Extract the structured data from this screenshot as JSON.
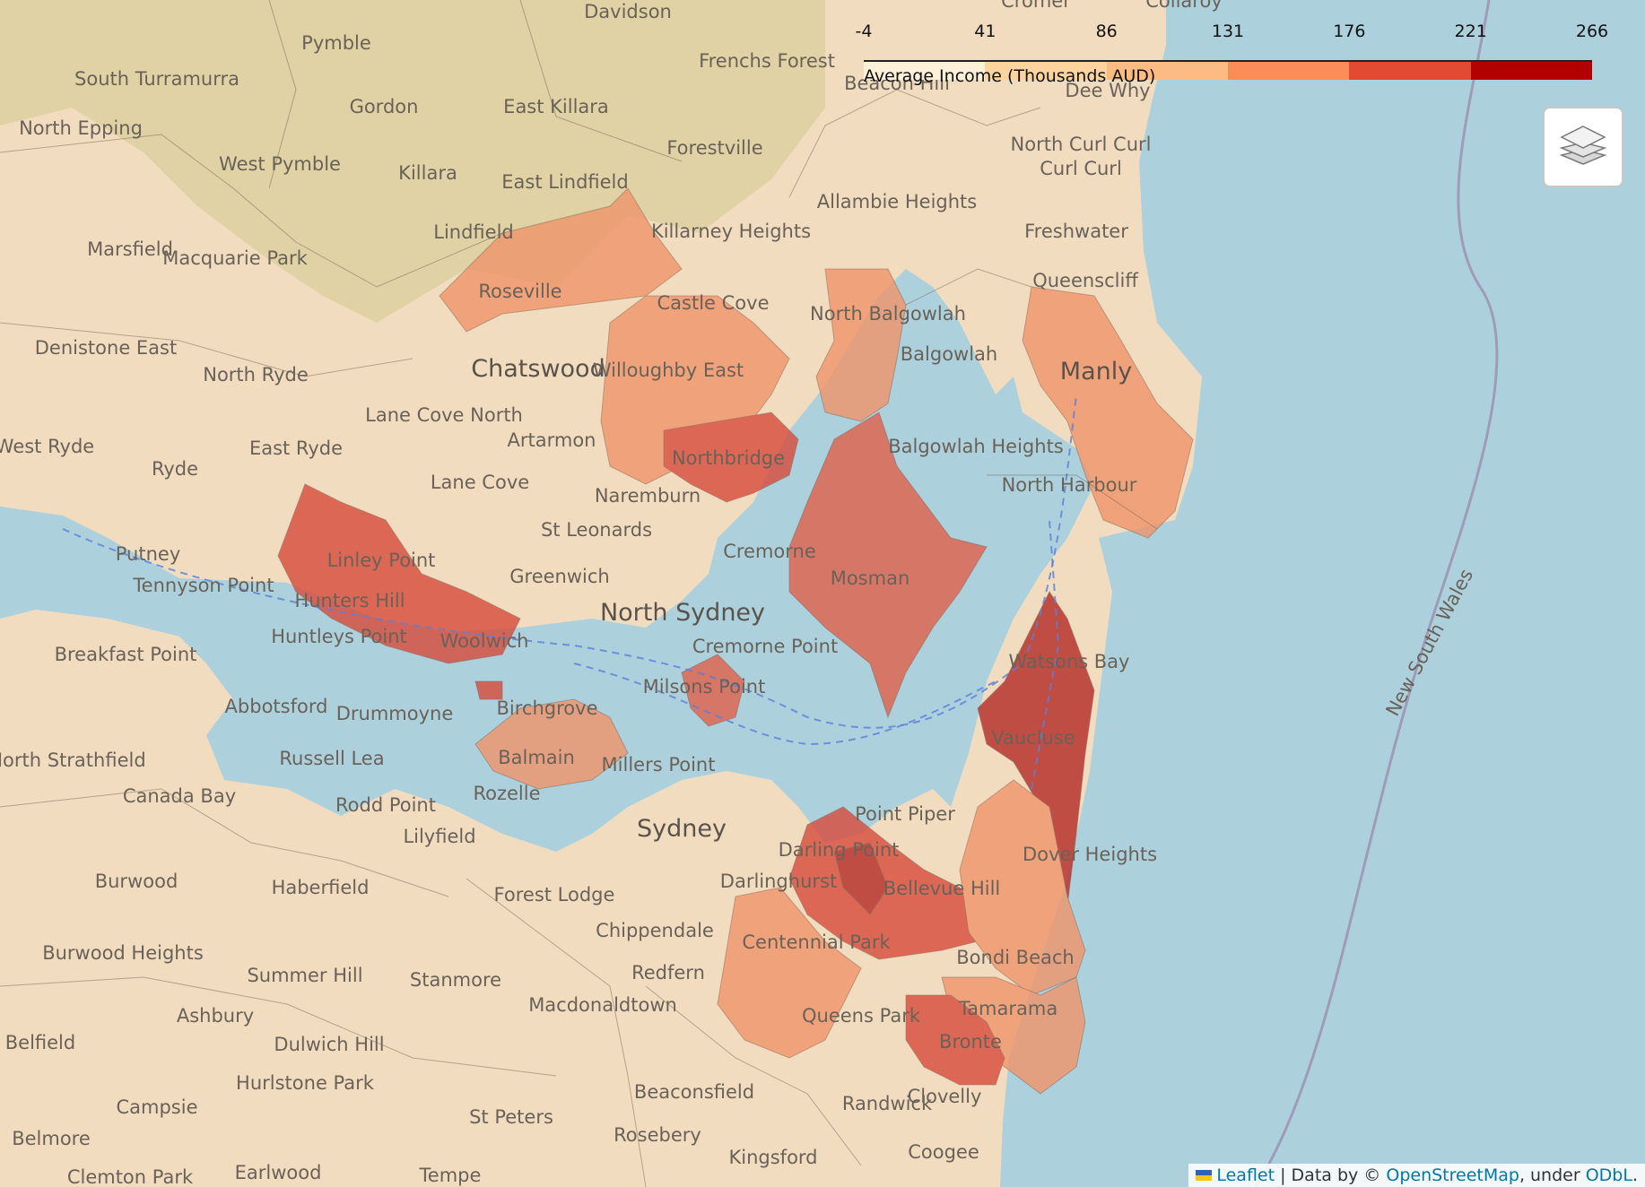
{
  "map": {
    "colors": {
      "water": "#acd1dd",
      "land": "#f1dcc0",
      "bushland": "#d8cf98",
      "border": "#7a5a4a"
    },
    "place_labels": [
      "Davidson",
      "Cromer",
      "Collaroy",
      "Pymble",
      "South Turramurra",
      "Gordon",
      "East Killara",
      "Frenchs Forest",
      "Beacon Hill",
      "Dee Why",
      "North Epping",
      "West Pymble",
      "Killara",
      "Forestville",
      "North Curl Curl",
      "Curl Curl",
      "East Lindfield",
      "Allambie Heights",
      "Freshwater",
      "Marsfield",
      "Macquarie Park",
      "Lindfield",
      "Killarney Heights",
      "Queenscliff",
      "Roseville",
      "Castle Cove",
      "North Balgowlah",
      "Denistone East",
      "North Ryde",
      "Chatswood",
      "Willoughby East",
      "Balgowlah",
      "Manly",
      "Lane Cove North",
      "Artarmon",
      "West Ryde",
      "Ryde",
      "East Ryde",
      "Northbridge",
      "Balgowlah Heights",
      "Lane Cove",
      "North Harbour",
      "Naremburn",
      "St Leonards",
      "Linley Point",
      "Putney",
      "Tennyson Point",
      "Greenwich",
      "Cremorne",
      "Mosman",
      "Hunters Hill",
      "North Sydney",
      "Huntleys Point",
      "Woolwich",
      "Cremorne Point",
      "Watsons Bay",
      "Breakfast Point",
      "Milsons Point",
      "Abbotsford",
      "Drummoyne",
      "Birchgrove",
      "Vaucluse",
      "North Strathfield",
      "Russell Lea",
      "Balmain",
      "Millers Point",
      "Canada Bay",
      "Rodd Point",
      "Rozelle",
      "Point Piper",
      "Lilyfield",
      "Sydney",
      "Darling Point",
      "Dover Heights",
      "Darlinghurst",
      "Burwood",
      "Haberfield",
      "Forest Lodge",
      "Bellevue Hill",
      "Chippendale",
      "Centennial Park",
      "Burwood Heights",
      "Summer Hill",
      "Stanmore",
      "Redfern",
      "Bondi Beach",
      "Ashbury",
      "Macdonaldtown",
      "Queens Park",
      "Tamarama",
      "Belfield",
      "Dulwich Hill",
      "Bronte",
      "Hurlstone Park",
      "Campsie",
      "Beaconsfield",
      "Randwick",
      "Clovelly",
      "St Peters",
      "Belmore",
      "Rosebery",
      "Kingsford",
      "Earlwood",
      "Tempe",
      "Coogee",
      "Clemton Park",
      "New South Wales"
    ]
  },
  "legend": {
    "caption": "Average Income (Thousands AUD)",
    "ticks": [
      "-4",
      "41",
      "86",
      "131",
      "176",
      "221",
      "266"
    ],
    "tick_values": [
      -4,
      41,
      86,
      131,
      176,
      221,
      266
    ],
    "colors": [
      "#fef0d9",
      "#fdd49e",
      "#fdbb84",
      "#fc8d59",
      "#e34a33",
      "#b30000"
    ]
  },
  "controls": {
    "layers_icon": "layers-icon"
  },
  "attribution": {
    "leaflet": "Leaflet",
    "separator": "| Data by ©",
    "osm": "OpenStreetMap",
    "under": ", under",
    "odbl": "ODbL",
    "end": "."
  }
}
